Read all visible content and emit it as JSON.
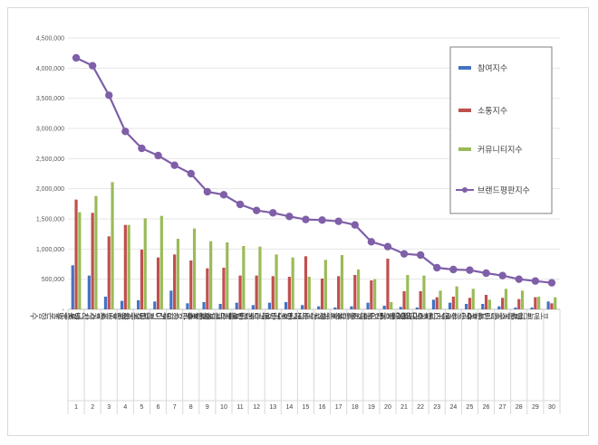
{
  "chart_data": {
    "type": "bar",
    "title": "",
    "xlabel": "",
    "ylabel": "",
    "ylim": [
      0,
      4500000
    ],
    "yticks": [
      0,
      500000,
      1000000,
      1500000,
      2000000,
      2500000,
      3000000,
      3500000,
      4000000,
      4500000
    ],
    "ytick_labels": [
      "-",
      "500,000",
      "1,000,000",
      "1,500,000",
      "2,000,000",
      "2,500,000",
      "3,000,000",
      "3,500,000",
      "4,000,000",
      "4,500,000"
    ],
    "grid": true,
    "legend_position": "right",
    "ranks": [
      "1",
      "2",
      "3",
      "4",
      "5",
      "6",
      "7",
      "8",
      "9",
      "10",
      "11",
      "12",
      "13",
      "14",
      "15",
      "16",
      "17",
      "18",
      "19",
      "20",
      "21",
      "22",
      "23",
      "24",
      "25",
      "26",
      "27",
      "28",
      "29",
      "30"
    ],
    "categories": [
      "조말론향수",
      "샤넬향수",
      "불가리향수",
      "랑방향수",
      "구찌향수",
      "지미추향수",
      "딥디크향수",
      "마크제이콥스향수",
      "몽블랑향수",
      "겐조향수",
      "베르사체향수",
      "캘빈클라인향수",
      "페라리향수",
      "존바바토스향수",
      "버버리향수",
      "끌로에향수",
      "돌체가바나향수",
      "톰포드향수",
      "크리드향수",
      "바이레도향수",
      "모스키노향수",
      "데메테르향수",
      "불리1803향수",
      "벤츠향수",
      "아쿠아디파르마향수",
      "르라보향수",
      "클린향수",
      "파코라반향수",
      "키엘향수",
      "포맨트향수"
    ],
    "series": [
      {
        "name": "참여지수",
        "color": "#4472c4",
        "values": [
          730000,
          560000,
          210000,
          140000,
          150000,
          130000,
          310000,
          100000,
          120000,
          90000,
          110000,
          70000,
          110000,
          120000,
          70000,
          50000,
          30000,
          50000,
          110000,
          60000,
          40000,
          30000,
          160000,
          110000,
          90000,
          90000,
          50000,
          30000,
          30000,
          130000
        ]
      },
      {
        "name": "소통지수",
        "color": "#c0504d",
        "values": [
          1820000,
          1600000,
          1210000,
          1400000,
          990000,
          860000,
          910000,
          810000,
          680000,
          690000,
          560000,
          560000,
          550000,
          540000,
          880000,
          510000,
          550000,
          570000,
          480000,
          840000,
          300000,
          300000,
          200000,
          210000,
          190000,
          240000,
          190000,
          170000,
          200000,
          100000
        ]
      },
      {
        "name": "커뮤니티지수",
        "color": "#9bbb59",
        "values": [
          1610000,
          1880000,
          2110000,
          1400000,
          1510000,
          1550000,
          1170000,
          1340000,
          1130000,
          1110000,
          1050000,
          1040000,
          910000,
          860000,
          540000,
          820000,
          900000,
          660000,
          500000,
          120000,
          570000,
          560000,
          310000,
          380000,
          340000,
          160000,
          340000,
          310000,
          210000,
          200000
        ]
      },
      {
        "name": "브랜드평판지수",
        "color": "#7f5fa8",
        "kind": "line",
        "values": [
          4170000,
          4040000,
          3550000,
          2950000,
          2670000,
          2550000,
          2390000,
          2250000,
          1950000,
          1900000,
          1740000,
          1640000,
          1600000,
          1540000,
          1490000,
          1480000,
          1460000,
          1400000,
          1120000,
          1040000,
          920000,
          900000,
          690000,
          660000,
          650000,
          600000,
          560000,
          500000,
          470000,
          440000
        ]
      }
    ]
  }
}
